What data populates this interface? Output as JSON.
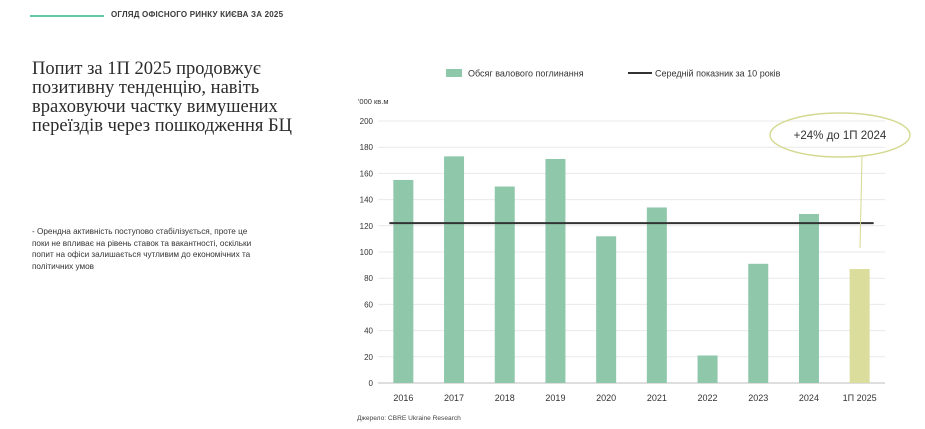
{
  "header": {
    "section_title": "ОГЛЯД ОФІСНОГО РИНКУ КИЄВА ЗА 2025"
  },
  "headline": "Попит за 1П 2025 продовжує позитивну тенденцію, навіть враховуючи частку вимушених переїздів через пошкодження БЦ",
  "body_text": "- Орендна активність поступово стабілізується, проте це поки не впливає на рівень ставок та вакантності, оскільки попит на офіси залишається чутливим до економічних та політичних умов",
  "source": "Джерело: CBRE Ukraine Research",
  "colors": {
    "accent": "#62c9a4",
    "bar": "#8fc7ab",
    "highlight_bar": "#dadd9c",
    "avg_line": "#333333",
    "callout": "#d4d98f"
  },
  "chart_data": {
    "type": "bar",
    "categories": [
      "2016",
      "2017",
      "2018",
      "2019",
      "2020",
      "2021",
      "2022",
      "2023",
      "2024",
      "1П 2025"
    ],
    "series": [
      {
        "name": "Обсяг валового поглинання",
        "values": [
          155,
          173,
          150,
          171,
          112,
          134,
          21,
          91,
          129,
          87
        ]
      },
      {
        "name": "Середній показник за 10 років",
        "type": "line",
        "value": 122
      }
    ],
    "highlight_category": "1П 2025",
    "ylabel": "'000 кв.м",
    "ylim": [
      0,
      200
    ],
    "yticks": [
      0,
      20,
      40,
      60,
      80,
      100,
      120,
      140,
      160,
      180,
      200
    ],
    "grid": true,
    "legend": "top",
    "annotation": "+24% до 1П 2024"
  }
}
